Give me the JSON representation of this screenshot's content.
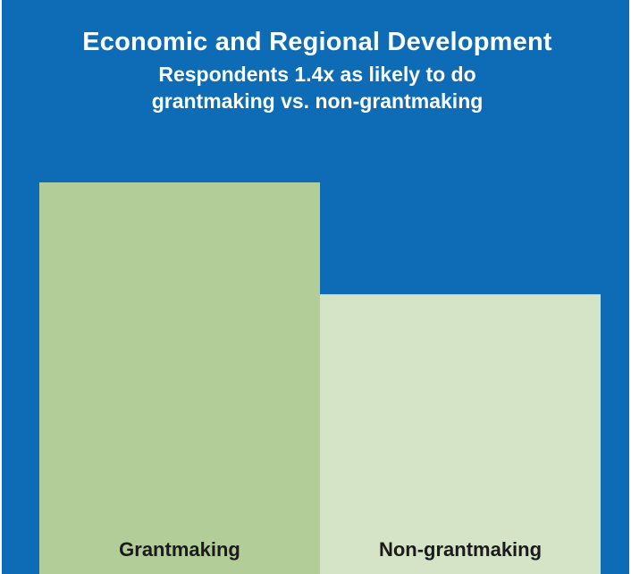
{
  "header": {
    "title": "Economic and Regional Development",
    "subtitle_line1": "Respondents 1.4x as likely to do",
    "subtitle_line2": "grantmaking vs. non-grantmaking"
  },
  "colors": {
    "background": "#0d6cb5",
    "bar_grantmaking": "#b3cd98",
    "bar_nongrantmaking": "#d5e3c6",
    "label": "#1b1b1b"
  },
  "chart_data": {
    "type": "bar",
    "title": "Economic and Regional Development",
    "subtitle": "Respondents 1.4x as likely to do grantmaking vs. non-grantmaking",
    "categories": [
      "Grantmaking",
      "Non-grantmaking"
    ],
    "values": [
      1.4,
      1.0
    ],
    "xlabel": "",
    "ylabel": "",
    "grid": false,
    "legend": "none"
  }
}
